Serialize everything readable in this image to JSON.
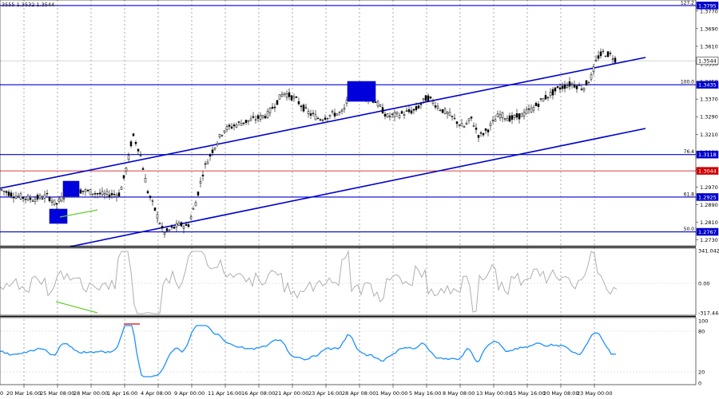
{
  "header": {
    "ohlc_text": "3555 1.3532 1.3544"
  },
  "colors": {
    "channel": "#0000cc",
    "level_line": "#0000cc",
    "red_line": "#cc0000",
    "cci": "#b0b0b0",
    "rsi": "#1e90ff",
    "divergence": "#66cc33",
    "marker_red": "#e03030",
    "axis_badge_blue": "#0000cc",
    "axis_badge_red": "#cc0000"
  },
  "price_axis": {
    "ticks": [
      "1.3770",
      "1.3690",
      "1.3610",
      "1.3530",
      "1.3450",
      "1.3370",
      "1.3290",
      "1.3210",
      "1.3130",
      "1.3050",
      "1.2970",
      "1.2890",
      "1.2810",
      "1.2730"
    ],
    "badges": [
      {
        "label": "1.3795",
        "kind": "blue"
      },
      {
        "label": "1.3544",
        "kind": "white"
      },
      {
        "label": "1.3435",
        "kind": "blue"
      },
      {
        "label": "1.3118",
        "kind": "blue"
      },
      {
        "label": "1.3044",
        "kind": "red"
      },
      {
        "label": "1.2925",
        "kind": "blue"
      },
      {
        "label": "1.2767",
        "kind": "blue"
      }
    ]
  },
  "fib_levels": [
    {
      "name": "127.2",
      "price": "1.3795"
    },
    {
      "name": "100.0",
      "price": "1.3435"
    },
    {
      "name": "76.4",
      "price": "1.3118"
    },
    {
      "name": "61.8",
      "price": "1.2925"
    },
    {
      "name": "50.0",
      "price": "1.2767"
    }
  ],
  "cci_panel": {
    "ticks": [
      "341.0423",
      "0.00",
      "-317.444"
    ]
  },
  "rsi_panel": {
    "ticks": [
      "100",
      "80",
      "20",
      "0"
    ]
  },
  "time_axis": [
    "20 Mar 16:00",
    "25 Mar 08:00",
    "28 Mar 00:00",
    "1 Apr 16:00",
    "4 Apr 08:00",
    "9 Apr 00:00",
    "11 Apr 16:00",
    "16 Apr 08:00",
    "21 Apr 00:00",
    "23 Apr 16:00",
    "28 Apr 08:00",
    "1 May 00:00",
    "5 May 16:00",
    "8 May 08:00",
    "13 May 00:00",
    "15 May 16:00",
    "20 May 08:00",
    "23 May 00:00"
  ],
  "time_axis_first": "0"
}
